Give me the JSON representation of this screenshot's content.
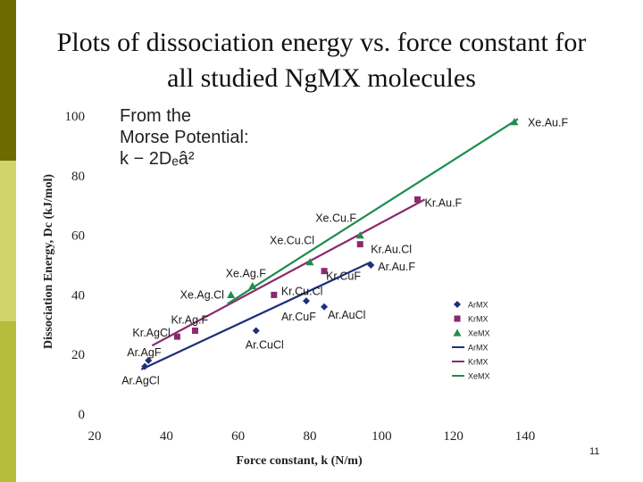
{
  "slide": {
    "title_line1": "Plots of dissociation energy vs. force constant for",
    "title_line2": "all studied NgMX molecules",
    "note_line1": "From the",
    "note_line2": "Morse Potential:",
    "note_line3": "k − 2Dₑâ²",
    "page_number": "11"
  },
  "colors": {
    "sidebar_dark": "#6b6b00",
    "sidebar_mid": "#b5bd3c",
    "sidebar_light": "#cfd56a",
    "ar": "#1f2f7a",
    "kr": "#8a2a6e",
    "xe": "#1e8c50"
  },
  "chart_data": {
    "type": "scatter",
    "xlabel": "Force constant, k (N/m)",
    "ylabel": "Dissociation Energy, Dc (kJ/mol)",
    "xlim": [
      20,
      140
    ],
    "ylim": [
      0,
      100
    ],
    "x_ticks": [
      20,
      40,
      60,
      80,
      100,
      120,
      140
    ],
    "y_ticks": [
      0,
      20,
      40,
      60,
      80,
      100
    ],
    "grid": false,
    "legend_position": "right",
    "series": [
      {
        "name": "ArMX",
        "marker": "diamond",
        "color": "#1f2f7a",
        "points": [
          {
            "x": 34,
            "y": 16,
            "label": "Ar.AgCl"
          },
          {
            "x": 35,
            "y": 18,
            "label": "Ar.AgF"
          },
          {
            "x": 65,
            "y": 28,
            "label": "Ar.CuCl"
          },
          {
            "x": 79,
            "y": 38,
            "label": "Ar.CuF"
          },
          {
            "x": 84,
            "y": 36,
            "label": "Ar.AuCl"
          },
          {
            "x": 97,
            "y": 50,
            "label": "Ar.Au.F"
          }
        ]
      },
      {
        "name": "KrMX",
        "marker": "square",
        "color": "#8a2a6e",
        "points": [
          {
            "x": 43,
            "y": 26,
            "label": "Kr.AgCl"
          },
          {
            "x": 48,
            "y": 28,
            "label": "Kr.Ag.F"
          },
          {
            "x": 70,
            "y": 40,
            "label": "Kr.Cu.Cl"
          },
          {
            "x": 84,
            "y": 48,
            "label": "Kr.CuF"
          },
          {
            "x": 94,
            "y": 57,
            "label": "Kr.Au.Cl"
          },
          {
            "x": 110,
            "y": 72,
            "label": "Kr.Au.F"
          }
        ]
      },
      {
        "name": "XeMX",
        "marker": "triangle",
        "color": "#1e8c50",
        "points": [
          {
            "x": 58,
            "y": 40,
            "label": "Xe.Ag.Cl"
          },
          {
            "x": 64,
            "y": 43,
            "label": "Xe.Ag.F"
          },
          {
            "x": 80,
            "y": 51,
            "label": "Xe.Cu.Cl"
          },
          {
            "x": 94,
            "y": 60,
            "label": "Xe.Cu.F"
          },
          {
            "x": 137,
            "y": 98,
            "label": "Xe.Au.F"
          }
        ]
      }
    ],
    "trendlines": [
      {
        "name": "ArMX",
        "x": [
          33,
          97
        ],
        "y": [
          15,
          51
        ]
      },
      {
        "name": "KrMX",
        "x": [
          36,
          112
        ],
        "y": [
          23,
          72
        ]
      },
      {
        "name": "XeMX",
        "x": [
          57,
          138
        ],
        "y": [
          37,
          99
        ]
      }
    ]
  }
}
